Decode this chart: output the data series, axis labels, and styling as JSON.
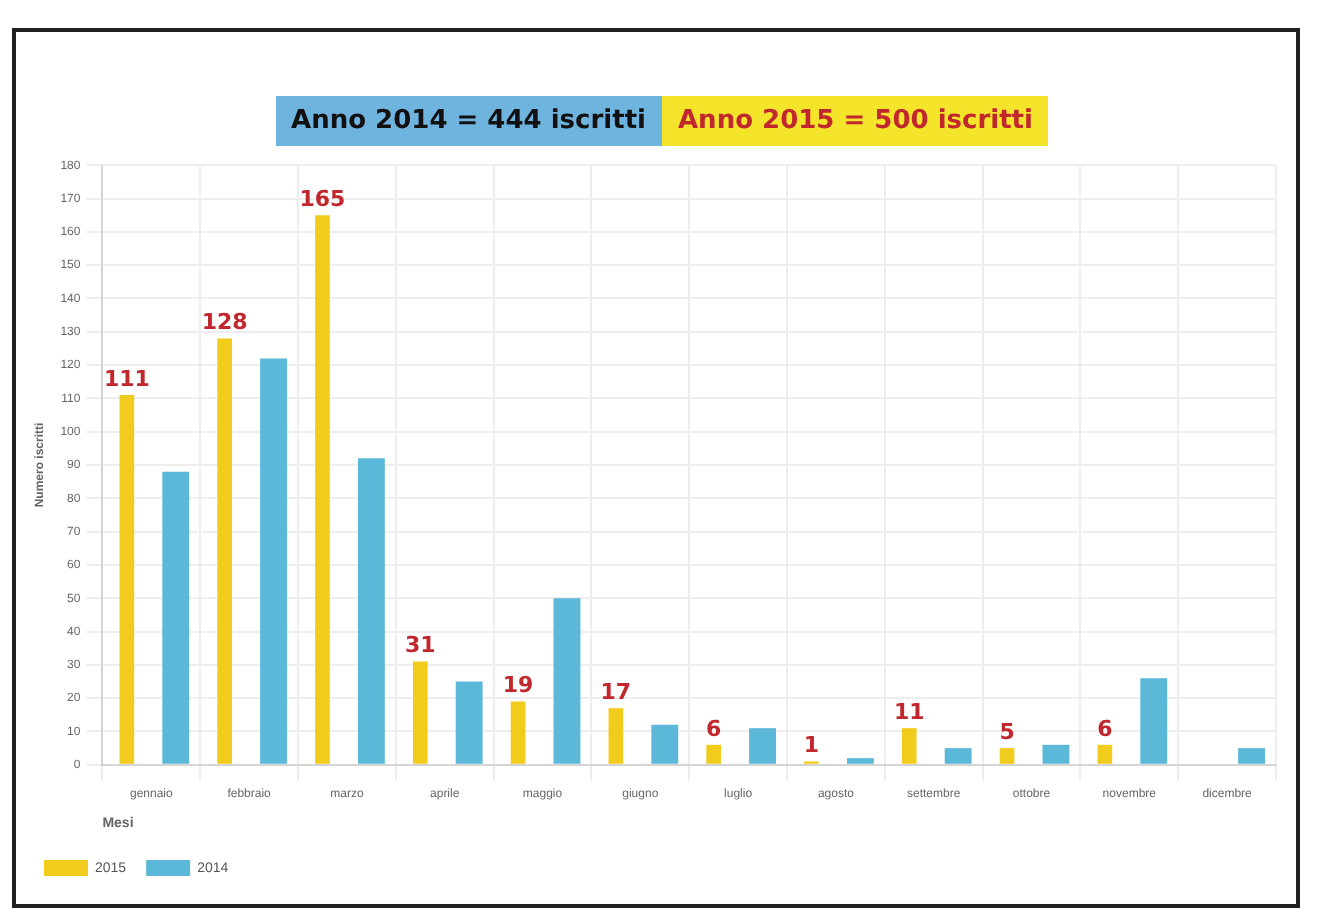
{
  "chart_data": {
    "type": "bar",
    "title": "Anno 2014 = 444 iscritti",
    "subtitle": "Anno 2015 = 500 iscritti",
    "xlabel": "Mesi",
    "ylabel": "Numero iscritti",
    "categories": [
      "gennaio",
      "febbraio",
      "marzo",
      "aprile",
      "maggio",
      "giugno",
      "luglio",
      "agosto",
      "settembre",
      "ottobre",
      "novembre",
      "dicembre"
    ],
    "series": [
      {
        "name": "2014",
        "color": "#5bb8d9",
        "values": [
          88,
          122,
          92,
          25,
          50,
          12,
          11,
          2,
          5,
          6,
          26,
          5
        ]
      },
      {
        "name": "2015",
        "color": "#f2cc1c",
        "values": [
          111,
          128,
          165,
          31,
          19,
          17,
          6,
          1,
          11,
          5,
          6,
          0
        ],
        "value_labels": [
          "111",
          "128",
          "165",
          "31",
          "19",
          "17",
          "6",
          "1",
          "11",
          "5",
          "6",
          null
        ]
      }
    ],
    "ylim": [
      0,
      180
    ],
    "yticks": [
      0,
      10,
      20,
      30,
      40,
      50,
      60,
      70,
      80,
      90,
      100,
      110,
      120,
      130,
      140,
      150,
      160,
      170,
      180
    ],
    "grid": true,
    "legend": "bottom left"
  }
}
